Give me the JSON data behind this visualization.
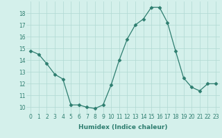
{
  "x": [
    0,
    1,
    2,
    3,
    4,
    5,
    6,
    7,
    8,
    9,
    10,
    11,
    12,
    13,
    14,
    15,
    16,
    17,
    18,
    19,
    20,
    21,
    22,
    23
  ],
  "y": [
    14.8,
    14.5,
    13.7,
    12.8,
    12.4,
    10.2,
    10.2,
    10.0,
    9.9,
    10.2,
    11.9,
    14.0,
    15.8,
    17.0,
    17.5,
    18.5,
    18.5,
    17.2,
    14.8,
    12.5,
    11.7,
    11.4,
    12.0,
    12.0
  ],
  "line_color": "#2d7d6f",
  "marker": "D",
  "marker_size": 2.5,
  "bg_color": "#d4f0eb",
  "grid_color": "#afd8d2",
  "xlabel": "Humidex (Indice chaleur)",
  "xlim": [
    -0.5,
    23.5
  ],
  "ylim": [
    9.5,
    19.0
  ],
  "yticks": [
    10,
    11,
    12,
    13,
    14,
    15,
    16,
    17,
    18
  ],
  "xticks": [
    0,
    1,
    2,
    3,
    4,
    5,
    6,
    7,
    8,
    9,
    10,
    11,
    12,
    13,
    14,
    15,
    16,
    17,
    18,
    19,
    20,
    21,
    22,
    23
  ],
  "label_fontsize": 6.5,
  "tick_fontsize": 5.5,
  "tick_color": "#2d7d6f",
  "label_color": "#2d7d6f"
}
